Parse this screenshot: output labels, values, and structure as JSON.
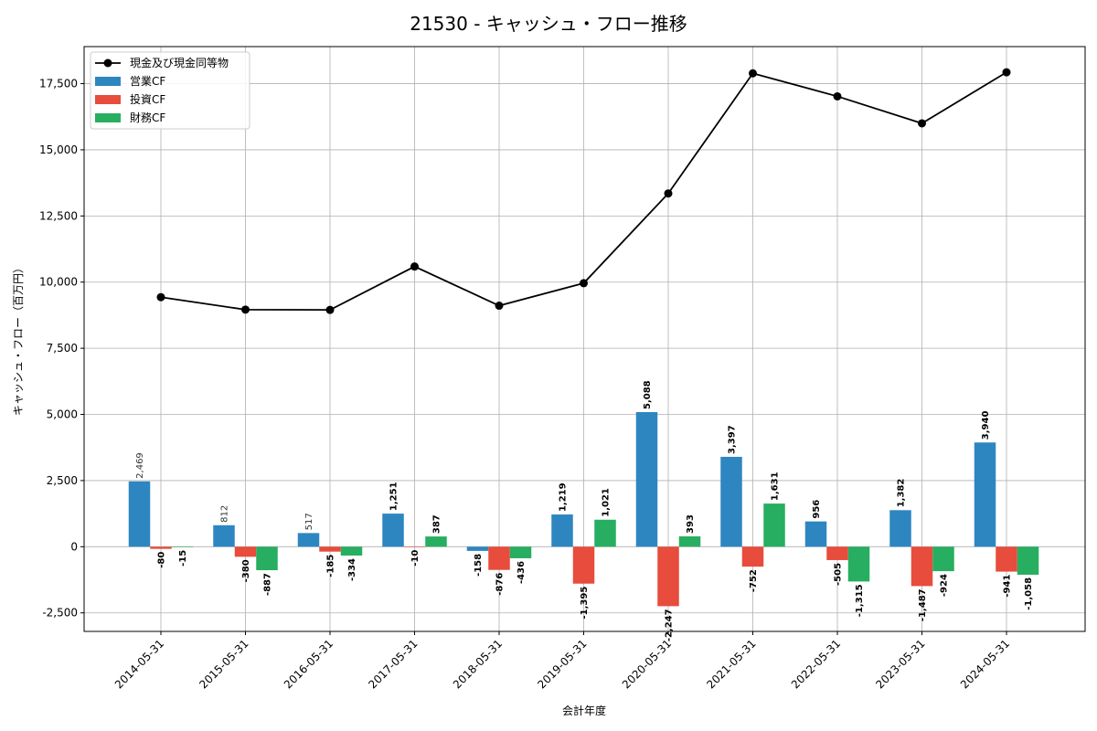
{
  "chart_data": {
    "type": "bar",
    "title": "21530 - キャッシュ・フロー推移",
    "xlabel": "会計年度",
    "ylabel": "キャッシュ・フロー（百万円）",
    "categories": [
      "2014-05-31",
      "2015-05-31",
      "2016-05-31",
      "2017-05-31",
      "2018-05-31",
      "2019-05-31",
      "2020-05-31",
      "2021-05-31",
      "2022-05-31",
      "2023-05-31",
      "2024-05-31"
    ],
    "ylim": [
      -3200,
      18900
    ],
    "yticks": [
      -2500,
      0,
      2500,
      5000,
      7500,
      10000,
      12500,
      15000,
      17500
    ],
    "ytick_labels": [
      "-2,500",
      "0",
      "2,500",
      "5,000",
      "7,500",
      "10,000",
      "12,500",
      "15,000",
      "17,500"
    ],
    "grid": true,
    "legend_position": "top-left",
    "series": [
      {
        "name": "営業CF",
        "kind": "bar",
        "color": "#2e86c1",
        "values": [
          2469,
          812,
          517,
          1251,
          -158,
          1219,
          5088,
          3397,
          956,
          1382,
          3940
        ],
        "labels": [
          "2,469",
          "812",
          "517",
          "1,251",
          "-158",
          "1,219",
          "5,088",
          "3,397",
          "956",
          "1,382",
          "3,940"
        ]
      },
      {
        "name": "投資CF",
        "kind": "bar",
        "color": "#e74c3c",
        "values": [
          -80,
          -380,
          -185,
          -10,
          -876,
          -1395,
          -2247,
          -752,
          -505,
          -1487,
          -941
        ],
        "labels": [
          "-80",
          "-380",
          "-185",
          "-10",
          "-876",
          "-1,395",
          "-2,247",
          "-752",
          "-505",
          "-1,487",
          "-941"
        ]
      },
      {
        "name": "財務CF",
        "kind": "bar",
        "color": "#27ae60",
        "values": [
          -15,
          -887,
          -334,
          387,
          -436,
          1021,
          393,
          1631,
          -1315,
          -924,
          -1058
        ],
        "labels": [
          "-15",
          "-887",
          "-334",
          "387",
          "-436",
          "1,021",
          "393",
          "1,631",
          "-1,315",
          "-924",
          "-1,058"
        ]
      },
      {
        "name": "現金及び現金同等物",
        "kind": "line",
        "color": "#000000",
        "values": [
          9430,
          8960,
          8950,
          10590,
          9110,
          9960,
          13350,
          17890,
          17020,
          16000,
          17930
        ]
      }
    ]
  }
}
